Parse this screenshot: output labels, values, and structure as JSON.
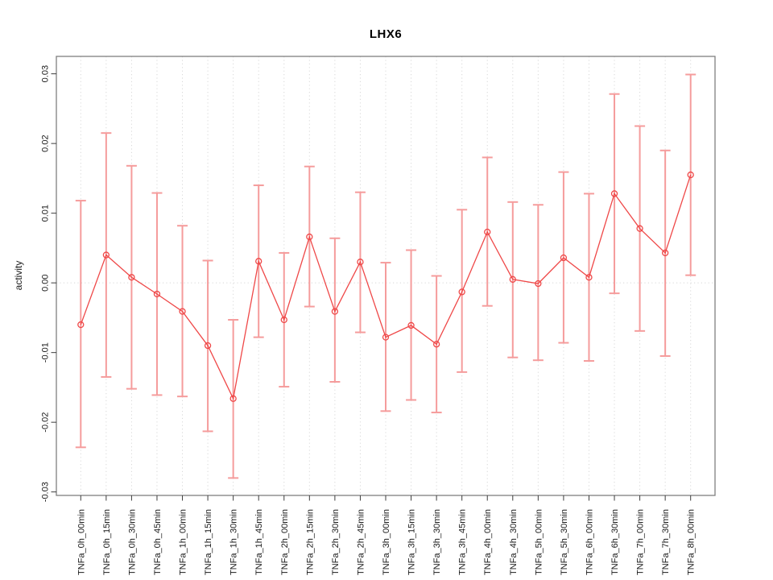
{
  "chart_data": {
    "type": "line",
    "title": "LHX6",
    "ylabel": "activity",
    "xlabel": "",
    "legend_position": "none",
    "grid": "vertical dotted gridlines at each category plus dotted horizontal line at y=0",
    "categories": [
      "TNFa_0h_00min",
      "TNFa_0h_15min",
      "TNFa_0h_30min",
      "TNFa_0h_45min",
      "TNFa_1h_00min",
      "TNFa_1h_15min",
      "TNFa_1h_30min",
      "TNFa_1h_45min",
      "TNFa_2h_00min",
      "TNFa_2h_15min",
      "TNFa_2h_30min",
      "TNFa_2h_45min",
      "TNFa_3h_00min",
      "TNFa_3h_15min",
      "TNFa_3h_30min",
      "TNFa_3h_45min",
      "TNFa_4h_00min",
      "TNFa_4h_30min",
      "TNFa_5h_00min",
      "TNFa_5h_30min",
      "TNFa_6h_00min",
      "TNFa_6h_30min",
      "TNFa_7h_00min",
      "TNFa_7h_30min",
      "TNFa_8h_00min"
    ],
    "series": [
      {
        "name": "activity",
        "marker": "open-circle",
        "values": [
          -0.006,
          0.004,
          0.0008,
          -0.0016,
          -0.0041,
          -0.009,
          -0.0166,
          0.0031,
          -0.0053,
          0.0066,
          -0.0041,
          0.003,
          -0.0078,
          -0.0061,
          -0.0088,
          -0.0013,
          0.0073,
          0.0005,
          -0.0001,
          0.0036,
          0.0008,
          0.0128,
          0.0078,
          0.0043,
          0.0155
        ],
        "lower": [
          -0.0236,
          -0.0135,
          -0.0152,
          -0.0161,
          -0.0163,
          -0.0213,
          -0.028,
          -0.0078,
          -0.0149,
          -0.0034,
          -0.0142,
          -0.0071,
          -0.0184,
          -0.0168,
          -0.0186,
          -0.0128,
          -0.0033,
          -0.0107,
          -0.0111,
          -0.0086,
          -0.0112,
          -0.0015,
          -0.0069,
          -0.0105,
          0.0011
        ],
        "upper": [
          0.0118,
          0.0215,
          0.0168,
          0.0129,
          0.0082,
          0.0032,
          -0.0053,
          0.014,
          0.0043,
          0.0167,
          0.0064,
          0.013,
          0.0029,
          0.0047,
          0.001,
          0.0105,
          0.018,
          0.0116,
          0.0112,
          0.0159,
          0.0128,
          0.0271,
          0.0225,
          0.019,
          0.0299
        ]
      }
    ],
    "y_ticks": [
      -0.03,
      -0.02,
      -0.01,
      0,
      0.01,
      0.02,
      0.03
    ],
    "y_tick_labels": [
      "-0.03",
      "-0.02",
      "-0.01",
      "0.00",
      "0.01",
      "0.02",
      "0.03"
    ],
    "ylim": [
      -0.0305,
      0.0325
    ],
    "colors": {
      "series_line": "#ef4848",
      "marker_stroke": "#ef4848",
      "error_bar": "#f59c9c",
      "grid_line": "#d8d8d8",
      "zero_line": "#d8d8d8",
      "axis_box": "#7f7f7f",
      "tick_mark": "#3c3c3c",
      "tick_text": "#1a1a1a",
      "title_text": "#000000"
    }
  }
}
